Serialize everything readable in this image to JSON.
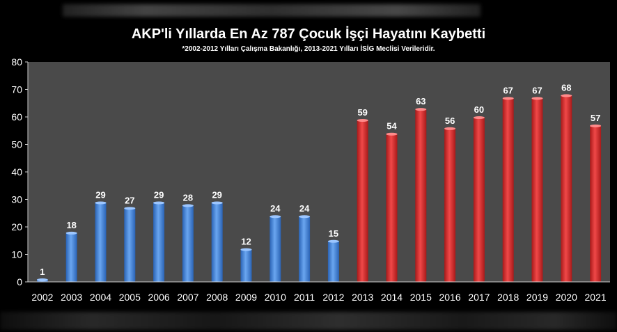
{
  "chart_data": {
    "type": "bar",
    "title": "AKP'li Yıllarda En Az 787 Çocuk İşçi Hayatını Kaybetti",
    "subtitle": "*2002-2012 Yılları Çalışma Bakanlığı, 2013-2021 Yılları İSİG Meclisi Verileridir.",
    "xlabel": "",
    "ylabel": "",
    "ylim": [
      0,
      80
    ],
    "yticks": [
      "0",
      "10",
      "20",
      "30",
      "40",
      "50",
      "60",
      "70",
      "80"
    ],
    "grid": false,
    "categories": [
      "2002",
      "2003",
      "2004",
      "2005",
      "2006",
      "2007",
      "2008",
      "2009",
      "2010",
      "2011",
      "2012",
      "2013",
      "2014",
      "2015",
      "2016",
      "2017",
      "2018",
      "2019",
      "2020",
      "2021"
    ],
    "values": [
      1,
      18,
      29,
      27,
      29,
      28,
      29,
      12,
      24,
      24,
      15,
      59,
      54,
      63,
      56,
      60,
      67,
      67,
      68,
      57
    ],
    "colors": {
      "ministry_series": "#3d7fd6",
      "isig_series": "#d42a2a",
      "plot_background": "#4a4a4a"
    },
    "ministry_years": [
      "2002",
      "2003",
      "2004",
      "2005",
      "2006",
      "2007",
      "2008",
      "2009",
      "2010",
      "2011",
      "2012"
    ]
  }
}
